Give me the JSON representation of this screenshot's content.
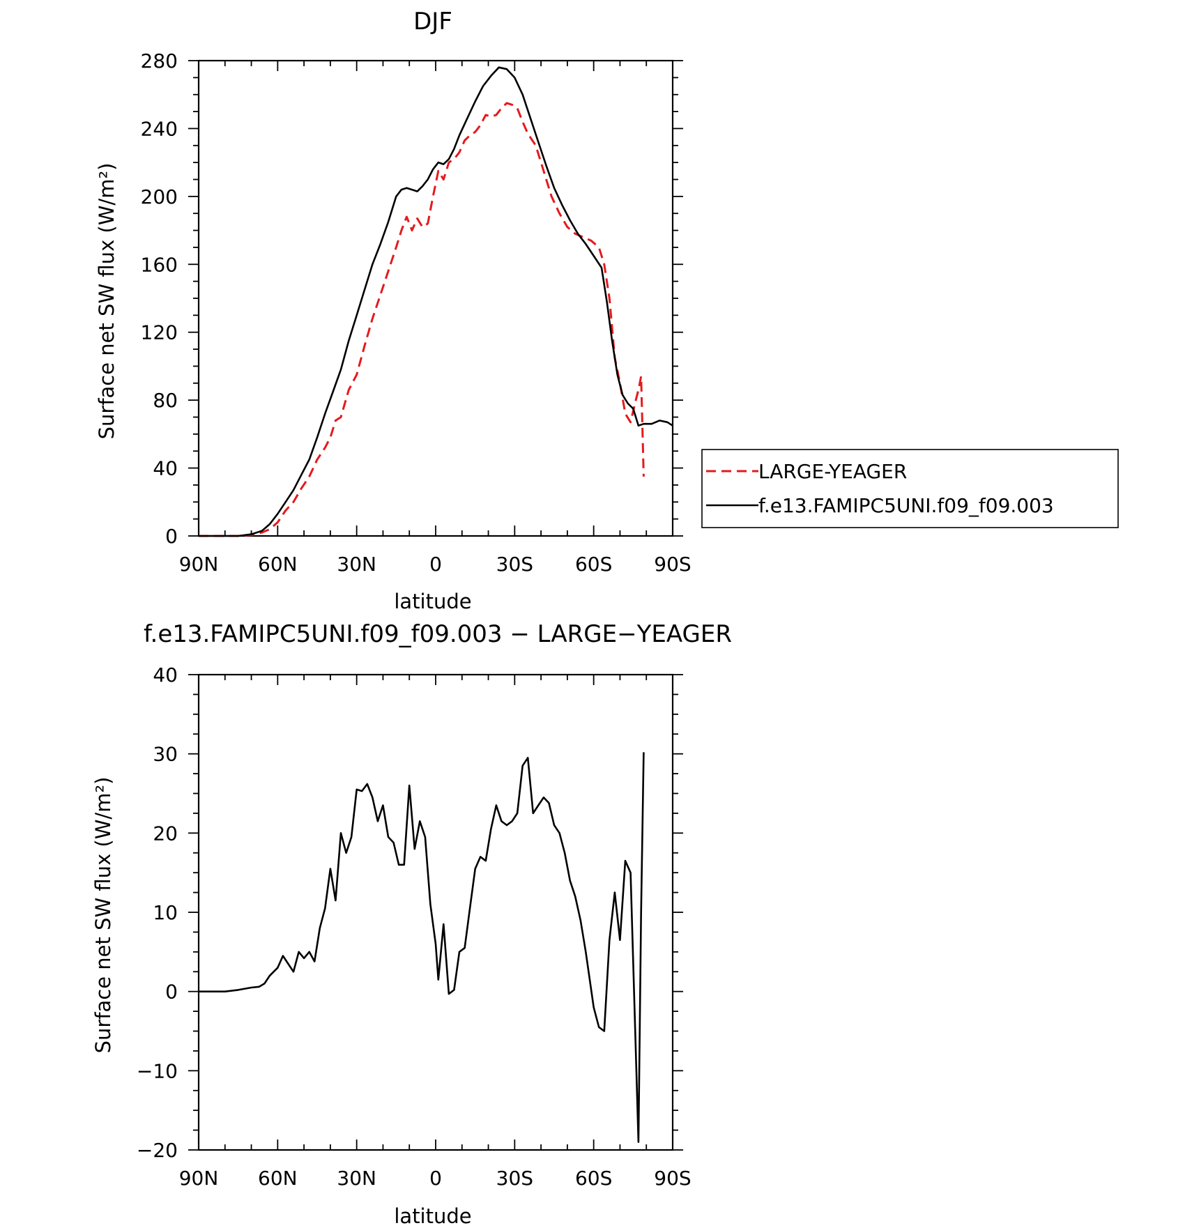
{
  "chart_data": [
    {
      "type": "line",
      "title": "DJF",
      "xlabel": "latitude",
      "ylabel": "Surface net SW flux",
      "ylabel_unit": "(W/m²)",
      "xlim": [
        -90,
        90
      ],
      "ylim": [
        0,
        280
      ],
      "xticks": [
        -90,
        -60,
        -30,
        0,
        30,
        60,
        90
      ],
      "xtick_labels": [
        "90N",
        "60N",
        "30N",
        "0",
        "30S",
        "60S",
        "90S"
      ],
      "yticks": [
        0,
        40,
        80,
        120,
        160,
        200,
        240,
        280
      ],
      "legend_position": "right",
      "series": [
        {
          "name": "LARGE-YEAGER",
          "color": "#e41a1c",
          "style": "dashed",
          "x": [
            -90,
            -80,
            -75,
            -70,
            -66,
            -63,
            -60,
            -57,
            -54,
            -51,
            -48,
            -45,
            -42,
            -40,
            -38,
            -36,
            -33,
            -30,
            -27,
            -24,
            -21,
            -18,
            -15,
            -13,
            -11,
            -9,
            -7,
            -5,
            -3,
            -1,
            1,
            3,
            5,
            7,
            9,
            11,
            13,
            15,
            17,
            19,
            21,
            23,
            25,
            27,
            29,
            31,
            33,
            35,
            38,
            41,
            44,
            47,
            50,
            53,
            56,
            59,
            62,
            64,
            66,
            68,
            70,
            72,
            74,
            76,
            77,
            78,
            79
          ],
          "y": [
            0,
            0,
            0,
            0.5,
            2,
            4,
            8,
            15,
            20,
            28,
            35,
            45,
            52,
            58,
            68,
            70,
            86,
            95,
            112,
            128,
            142,
            156,
            170,
            180,
            188,
            180,
            187,
            182,
            184,
            200,
            215,
            210,
            220,
            222,
            226,
            233,
            236,
            238,
            242,
            248,
            247,
            248,
            252,
            255,
            254,
            252,
            244,
            237,
            230,
            215,
            200,
            190,
            182,
            178,
            176,
            174,
            170,
            160,
            140,
            105,
            90,
            72,
            67,
            80,
            86,
            94,
            35
          ]
        },
        {
          "name": "f.e13.FAMIPC5UNI.f09_f09.003",
          "color": "#000000",
          "style": "solid",
          "x": [
            -90,
            -80,
            -75,
            -70,
            -66,
            -63,
            -60,
            -57,
            -54,
            -51,
            -48,
            -45,
            -42,
            -39,
            -36,
            -33,
            -30,
            -27,
            -24,
            -21,
            -18,
            -15,
            -13,
            -11,
            -9,
            -7,
            -5,
            -3,
            -1,
            1,
            3,
            5,
            7,
            9,
            12,
            15,
            18,
            21,
            24,
            27,
            30,
            33,
            36,
            39,
            42,
            45,
            48,
            51,
            54,
            57,
            60,
            63,
            65,
            67,
            69,
            71,
            73,
            75,
            77,
            79,
            82,
            85,
            88,
            90
          ],
          "y": [
            0,
            0,
            0,
            1,
            3,
            7,
            13,
            20,
            27,
            36,
            45,
            58,
            72,
            85,
            98,
            115,
            130,
            145,
            160,
            172,
            185,
            200,
            204,
            205,
            204,
            203,
            206,
            210,
            216,
            220,
            219,
            222,
            228,
            236,
            246,
            256,
            265,
            271,
            276,
            275,
            270,
            260,
            246,
            232,
            218,
            205,
            195,
            186,
            178,
            172,
            165,
            158,
            138,
            115,
            95,
            83,
            78,
            75,
            65,
            66,
            66,
            68,
            67,
            65
          ]
        }
      ]
    },
    {
      "type": "line",
      "title": "f.e13.FAMIPC5UNI.f09_f09.003 − LARGE−YEAGER",
      "xlabel": "latitude",
      "ylabel": "Surface net SW flux",
      "ylabel_unit": "(W/m²)",
      "xlim": [
        -90,
        90
      ],
      "ylim": [
        -20,
        40
      ],
      "xticks": [
        -90,
        -60,
        -30,
        0,
        30,
        60,
        90
      ],
      "xtick_labels": [
        "90N",
        "60N",
        "30N",
        "0",
        "30S",
        "60S",
        "90S"
      ],
      "yticks": [
        -20,
        -10,
        0,
        10,
        20,
        30,
        40
      ],
      "ytick_labels": [
        "−20",
        "−10",
        "0",
        "10",
        "20",
        "30",
        "40"
      ],
      "series": [
        {
          "color": "#000000",
          "style": "solid",
          "x": [
            -90,
            -80,
            -75,
            -70,
            -67,
            -65,
            -63,
            -60,
            -58,
            -56,
            -54,
            -52,
            -50,
            -48,
            -46,
            -44,
            -42,
            -40,
            -38,
            -36,
            -34,
            -32,
            -30,
            -28,
            -26,
            -24,
            -22,
            -20,
            -18,
            -16,
            -14,
            -12,
            -10,
            -8,
            -6,
            -4,
            -2,
            0,
            1,
            3,
            5,
            7,
            9,
            11,
            13,
            15,
            17,
            19,
            21,
            23,
            25,
            27,
            29,
            31,
            33,
            35,
            37,
            39,
            41,
            43,
            45,
            47,
            49,
            51,
            53,
            55,
            57,
            60,
            62,
            64,
            66,
            68,
            70,
            72,
            74,
            77,
            78,
            79
          ],
          "y": [
            0,
            0,
            0.2,
            0.5,
            0.6,
            1,
            2,
            3,
            4.5,
            3.5,
            2.5,
            5,
            4.2,
            5,
            3.8,
            8,
            10.5,
            15.5,
            11.5,
            20,
            17.5,
            19.5,
            25.5,
            25.3,
            26.2,
            24.5,
            21.5,
            23.5,
            19.5,
            18.8,
            16,
            16,
            26,
            18,
            21.5,
            19.5,
            11,
            6,
            1.5,
            8.5,
            -0.3,
            0.2,
            5,
            5.5,
            10.5,
            15.5,
            17,
            16.5,
            20.5,
            23.5,
            21.5,
            21,
            21.5,
            22.5,
            28.5,
            29.5,
            22.5,
            23.5,
            24.5,
            23.8,
            21,
            20,
            17.5,
            14,
            12,
            9,
            5,
            -2,
            -4.5,
            -5,
            6.5,
            12.5,
            6.5,
            16.5,
            15,
            -19,
            10,
            30.2
          ]
        }
      ]
    }
  ]
}
